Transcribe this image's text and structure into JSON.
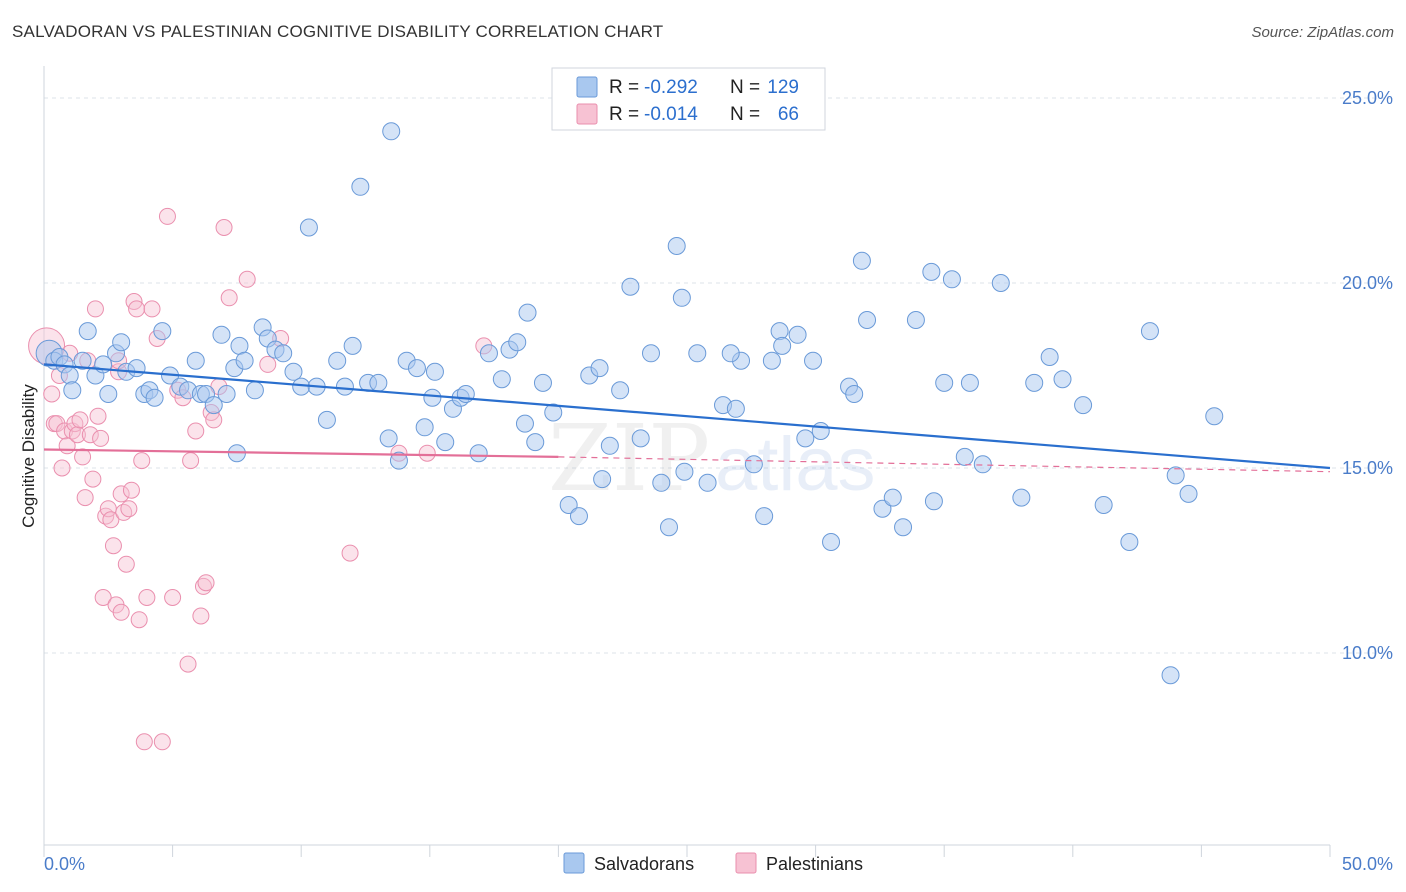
{
  "header": {
    "title": "SALVADORAN VS PALESTINIAN COGNITIVE DISABILITY CORRELATION CHART",
    "source": "Source: ZipAtlas.com"
  },
  "watermark": {
    "zip": "ZIP",
    "atlas": "atlas"
  },
  "colors": {
    "salvadoran_fill": "#a9c8ef",
    "salvadoran_stroke": "#6a9ad8",
    "salvadoran_line": "#2a6fce",
    "palestinian_fill": "#f7c2d3",
    "palestinian_stroke": "#ea8fae",
    "palestinian_line": "#e36f98",
    "axis_label": "#4a7cc9",
    "grid": "#dde3ea"
  },
  "legend": {
    "rows": [
      {
        "r_label": "R =",
        "r_value": "-0.292",
        "n_label": "N =",
        "n_value": "129"
      },
      {
        "r_label": "R =",
        "r_value": "-0.014",
        "n_label": "N =",
        "n_value": "66"
      }
    ]
  },
  "chart_data": {
    "type": "scatter",
    "title": "SALVADORAN VS PALESTINIAN COGNITIVE DISABILITY CORRELATION CHART",
    "xlabel": "",
    "ylabel": "Cognitive Disability",
    "xlim": [
      0,
      50
    ],
    "ylim": [
      5,
      26
    ],
    "x_tick_labels": {
      "0": "0.0%",
      "50": "50.0%"
    },
    "y_ticks": [
      10,
      15,
      20,
      25
    ],
    "y_tick_labels": [
      "10.0%",
      "15.0%",
      "20.0%",
      "25.0%"
    ],
    "grid": true,
    "legend_position": "top-center",
    "series": [
      {
        "name": "Salvadorans",
        "trend": {
          "x": [
            0,
            50
          ],
          "y": [
            17.8,
            15.0
          ]
        },
        "points": [
          [
            0.2,
            18.1
          ],
          [
            0.4,
            17.9
          ],
          [
            0.6,
            18.0
          ],
          [
            0.8,
            17.8
          ],
          [
            1.0,
            17.5
          ],
          [
            1.1,
            17.1
          ],
          [
            1.5,
            17.9
          ],
          [
            1.7,
            18.7
          ],
          [
            2.0,
            17.5
          ],
          [
            2.3,
            17.8
          ],
          [
            2.5,
            17.0
          ],
          [
            2.8,
            18.1
          ],
          [
            3.0,
            18.4
          ],
          [
            3.2,
            17.6
          ],
          [
            3.6,
            17.7
          ],
          [
            3.9,
            17.0
          ],
          [
            4.1,
            17.1
          ],
          [
            4.3,
            16.9
          ],
          [
            4.6,
            18.7
          ],
          [
            4.9,
            17.5
          ],
          [
            5.3,
            17.2
          ],
          [
            5.6,
            17.1
          ],
          [
            5.9,
            17.9
          ],
          [
            6.1,
            17.0
          ],
          [
            6.3,
            17.0
          ],
          [
            6.6,
            16.7
          ],
          [
            6.9,
            18.6
          ],
          [
            7.1,
            17.0
          ],
          [
            7.4,
            17.7
          ],
          [
            7.6,
            18.3
          ],
          [
            7.8,
            17.9
          ],
          [
            8.2,
            17.1
          ],
          [
            8.5,
            18.8
          ],
          [
            8.7,
            18.5
          ],
          [
            9.0,
            18.2
          ],
          [
            9.3,
            18.1
          ],
          [
            9.7,
            17.6
          ],
          [
            10.0,
            17.2
          ],
          [
            10.3,
            21.5
          ],
          [
            10.6,
            17.2
          ],
          [
            11.0,
            16.3
          ],
          [
            11.4,
            17.9
          ],
          [
            11.7,
            17.2
          ],
          [
            12.0,
            18.3
          ],
          [
            12.3,
            22.6
          ],
          [
            12.6,
            17.3
          ],
          [
            13.0,
            17.3
          ],
          [
            13.4,
            15.8
          ],
          [
            13.8,
            15.2
          ],
          [
            14.1,
            17.9
          ],
          [
            14.5,
            17.7
          ],
          [
            14.8,
            16.1
          ],
          [
            15.2,
            17.6
          ],
          [
            15.6,
            15.7
          ],
          [
            15.9,
            16.6
          ],
          [
            16.2,
            16.9
          ],
          [
            16.4,
            17.0
          ],
          [
            16.9,
            15.4
          ],
          [
            17.3,
            18.1
          ],
          [
            17.8,
            17.4
          ],
          [
            18.1,
            18.2
          ],
          [
            18.4,
            18.4
          ],
          [
            18.8,
            19.2
          ],
          [
            19.1,
            15.7
          ],
          [
            19.4,
            17.3
          ],
          [
            19.8,
            16.5
          ],
          [
            20.4,
            14.0
          ],
          [
            20.8,
            13.7
          ],
          [
            21.2,
            17.5
          ],
          [
            21.6,
            17.7
          ],
          [
            22.0,
            15.6
          ],
          [
            22.4,
            17.1
          ],
          [
            22.8,
            19.9
          ],
          [
            23.2,
            15.8
          ],
          [
            23.6,
            18.1
          ],
          [
            24.0,
            14.6
          ],
          [
            24.3,
            13.4
          ],
          [
            24.6,
            21.0
          ],
          [
            24.9,
            14.9
          ],
          [
            25.4,
            18.1
          ],
          [
            25.8,
            14.6
          ],
          [
            26.4,
            16.7
          ],
          [
            27.1,
            17.9
          ],
          [
            27.6,
            15.1
          ],
          [
            28.0,
            13.7
          ],
          [
            28.3,
            17.9
          ],
          [
            28.6,
            18.7
          ],
          [
            29.3,
            18.6
          ],
          [
            29.6,
            15.8
          ],
          [
            30.2,
            16.0
          ],
          [
            30.6,
            13.0
          ],
          [
            31.3,
            17.2
          ],
          [
            31.5,
            17.0
          ],
          [
            31.8,
            20.6
          ],
          [
            32.0,
            19.0
          ],
          [
            32.6,
            13.9
          ],
          [
            33.0,
            14.2
          ],
          [
            33.4,
            13.4
          ],
          [
            33.9,
            19.0
          ],
          [
            34.6,
            14.1
          ],
          [
            35.0,
            17.3
          ],
          [
            35.3,
            20.1
          ],
          [
            36.0,
            17.3
          ],
          [
            36.5,
            15.1
          ],
          [
            37.2,
            20.0
          ],
          [
            38.0,
            14.2
          ],
          [
            38.5,
            17.3
          ],
          [
            39.1,
            18.0
          ],
          [
            39.6,
            17.4
          ],
          [
            40.4,
            16.7
          ],
          [
            41.2,
            14.0
          ],
          [
            42.2,
            13.0
          ],
          [
            43.0,
            18.7
          ],
          [
            44.0,
            14.8
          ],
          [
            44.5,
            14.3
          ],
          [
            45.5,
            16.4
          ],
          [
            43.8,
            9.4
          ],
          [
            21.7,
            14.7
          ],
          [
            13.5,
            24.1
          ],
          [
            26.7,
            18.1
          ],
          [
            28.7,
            18.3
          ],
          [
            7.5,
            15.4
          ],
          [
            24.8,
            19.6
          ],
          [
            34.5,
            20.3
          ],
          [
            18.7,
            16.2
          ],
          [
            15.1,
            16.9
          ],
          [
            29.9,
            17.9
          ],
          [
            26.9,
            16.6
          ],
          [
            35.8,
            15.3
          ]
        ]
      },
      {
        "name": "Palestinians",
        "trend": {
          "x": [
            0,
            20
          ],
          "y": [
            15.5,
            15.3
          ]
        },
        "trend_dashed": {
          "x": [
            20,
            50
          ],
          "y": [
            15.3,
            14.9
          ]
        },
        "points": [
          [
            0.1,
            18.3
          ],
          [
            0.3,
            17.0
          ],
          [
            0.4,
            16.2
          ],
          [
            0.5,
            16.2
          ],
          [
            0.6,
            17.5
          ],
          [
            0.7,
            15.0
          ],
          [
            0.8,
            16.0
          ],
          [
            0.9,
            15.6
          ],
          [
            1.0,
            18.1
          ],
          [
            1.1,
            16.0
          ],
          [
            1.2,
            16.2
          ],
          [
            1.3,
            15.9
          ],
          [
            1.4,
            16.3
          ],
          [
            1.5,
            15.3
          ],
          [
            1.6,
            14.2
          ],
          [
            1.7,
            17.9
          ],
          [
            1.8,
            15.9
          ],
          [
            1.9,
            14.7
          ],
          [
            2.0,
            19.3
          ],
          [
            2.1,
            16.4
          ],
          [
            2.2,
            15.8
          ],
          [
            2.3,
            11.5
          ],
          [
            2.4,
            13.7
          ],
          [
            2.5,
            13.9
          ],
          [
            2.6,
            13.6
          ],
          [
            2.7,
            12.9
          ],
          [
            2.8,
            11.3
          ],
          [
            2.9,
            17.6
          ],
          [
            3.0,
            14.3
          ],
          [
            3.1,
            13.8
          ],
          [
            3.2,
            12.4
          ],
          [
            3.3,
            13.9
          ],
          [
            3.4,
            14.4
          ],
          [
            3.5,
            19.5
          ],
          [
            3.6,
            19.3
          ],
          [
            3.7,
            10.9
          ],
          [
            3.8,
            15.2
          ],
          [
            3.9,
            7.6
          ],
          [
            4.0,
            11.5
          ],
          [
            4.2,
            19.3
          ],
          [
            4.4,
            18.5
          ],
          [
            4.8,
            21.8
          ],
          [
            5.0,
            11.5
          ],
          [
            5.2,
            17.1
          ],
          [
            5.4,
            16.9
          ],
          [
            5.6,
            9.7
          ],
          [
            5.7,
            15.2
          ],
          [
            5.9,
            16.0
          ],
          [
            6.1,
            11.0
          ],
          [
            6.2,
            11.8
          ],
          [
            6.3,
            11.9
          ],
          [
            6.5,
            16.5
          ],
          [
            6.6,
            16.3
          ],
          [
            6.8,
            17.2
          ],
          [
            7.0,
            21.5
          ],
          [
            7.2,
            19.6
          ],
          [
            7.9,
            20.1
          ],
          [
            8.7,
            17.8
          ],
          [
            9.2,
            18.5
          ],
          [
            11.9,
            12.7
          ],
          [
            13.8,
            15.4
          ],
          [
            14.9,
            15.4
          ],
          [
            17.1,
            18.3
          ],
          [
            4.6,
            7.6
          ],
          [
            3.0,
            11.1
          ],
          [
            2.9,
            17.9
          ]
        ]
      }
    ]
  },
  "bottom_legend": {
    "items": [
      "Salvadorans",
      "Palestinians"
    ]
  }
}
